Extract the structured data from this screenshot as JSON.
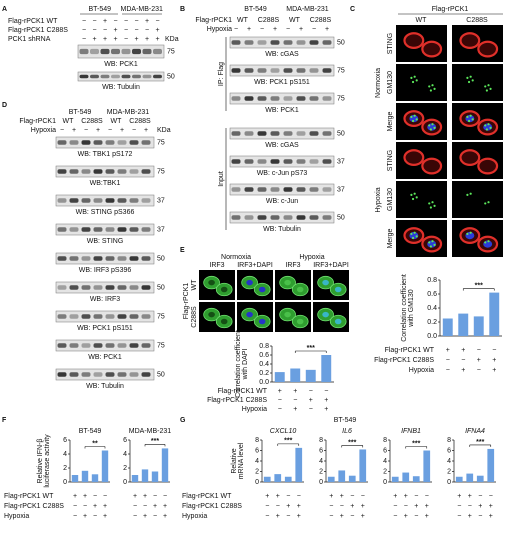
{
  "panels": {
    "A": {
      "label": "A",
      "groups": [
        "BT-549",
        "MDA-MB-231"
      ],
      "unit": "KDa",
      "rows": [
        {
          "name": "Flag-rPCK1 WT",
          "signs": [
            "−",
            "−",
            "+",
            "−",
            "−",
            "−",
            "+",
            "−"
          ]
        },
        {
          "name": "Flag-rPCK1 C288S",
          "signs": [
            "−",
            "−",
            "−",
            "+",
            "−",
            "−",
            "−",
            "+"
          ]
        },
        {
          "name": "PCK1 shRNA",
          "signs": [
            "−",
            "+",
            "+",
            "+",
            "−",
            "+",
            "+",
            "+"
          ]
        }
      ],
      "blots": [
        {
          "label": "WB: PCK1",
          "marker": 75
        },
        {
          "label": "WB: Tubulin",
          "marker": 50
        }
      ]
    },
    "B": {
      "label": "B",
      "groups": [
        "BT-549",
        "MDA-MB-231"
      ],
      "row_label": "Flag-rPCK1",
      "variants": [
        "WT",
        "C288S",
        "WT",
        "C288S"
      ],
      "hypoxia": {
        "name": "Hypoxia",
        "signs": [
          "−",
          "+",
          "−",
          "+",
          "−",
          "+",
          "−",
          "+"
        ]
      },
      "sections": [
        "IP: Flag",
        "Input"
      ],
      "blots": [
        {
          "label": "WB: cGAS",
          "marker": 50
        },
        {
          "label": "WB: PCK1 pS151",
          "marker": 75
        },
        {
          "label": "WB: PCK1",
          "marker": 75
        },
        {
          "label": "WB: cGAS",
          "marker": 50
        },
        {
          "label": "WB: c-Jun pS73",
          "marker": 37
        },
        {
          "label": "WB: c-Jun",
          "marker": 37
        },
        {
          "label": "WB: Tubulin",
          "marker": 50
        }
      ]
    },
    "C": {
      "label": "C",
      "header": "Flag-rPCK1",
      "variants": [
        "WT",
        "C288S"
      ],
      "conditions": [
        "Normoxia",
        "Hypoxia"
      ],
      "stains": [
        "STING",
        "GM130",
        "Merge"
      ],
      "condition_labels": [
        "Flag-rPCK1 WT",
        "Flag-rPCK1 C288S",
        "Hypoxia"
      ]
    },
    "D": {
      "label": "D",
      "groups": [
        "BT-549",
        "MDA-MB-231"
      ],
      "row_label": "Flag-rPCK1",
      "unit": "KDa",
      "variants": [
        "WT",
        "C288S",
        "WT",
        "C288S"
      ],
      "hypoxia": {
        "name": "Hypoxia",
        "signs": [
          "−",
          "+",
          "−",
          "+",
          "−",
          "+",
          "−",
          "+"
        ]
      },
      "blots": [
        {
          "label": "WB: TBK1 pS172",
          "marker": 75
        },
        {
          "label": "WB:TBK1",
          "marker": 75
        },
        {
          "label": "WB: STING pS366",
          "marker": 37
        },
        {
          "label": "WB: STING",
          "marker": 37
        },
        {
          "label": "WB: IRF3 pS396",
          "marker": 50
        },
        {
          "label": "WB: IRF3",
          "marker": 50
        },
        {
          "label": "WB: PCK1 pS151",
          "marker": 75
        },
        {
          "label": "WB: PCK1",
          "marker": 75
        },
        {
          "label": "WB: Tubulin",
          "marker": 50
        }
      ]
    },
    "E": {
      "label": "E",
      "conditions": [
        "Normoxia",
        "Hypoxia"
      ],
      "stains": [
        "IRF3",
        "IRF3+DAPI"
      ],
      "row_label": "Flag-rPCK1",
      "variants": [
        "WT",
        "C288S"
      ],
      "condition_labels": [
        "Flag-rPCK1 WT",
        "Flag-rPCK1 C288S",
        "Hypoxia"
      ]
    },
    "F": {
      "label": "F",
      "condition_labels": [
        "Flag-rPCK1 WT",
        "Flag-rPCK1 C288S",
        "Hypoxia"
      ]
    },
    "G": {
      "label": "G",
      "title": "BT-549",
      "condition_labels": [
        "Flag-rPCK1 WT",
        "Flag-rPCK1 C288S",
        "Hypoxia"
      ]
    }
  },
  "chart_data": [
    {
      "type": "bar",
      "ylabel": [
        "Correlation coefficient",
        "with GM130"
      ],
      "categories": [
        null,
        null,
        null,
        null
      ],
      "values": [
        0.25,
        0.32,
        0.28,
        0.62
      ],
      "color": "#6a9fe0",
      "ylim": [
        0,
        0.8
      ],
      "yticks": [
        {
          "value": 0,
          "label": "0.0"
        },
        0.2,
        0.4,
        0.6,
        0.8
      ],
      "annotation": "***",
      "signs": [
        [
          "+",
          "+",
          "−",
          "−"
        ],
        [
          "−",
          "−",
          "+",
          "+"
        ],
        [
          "−",
          "+",
          "−",
          "+"
        ]
      ]
    },
    {
      "type": "bar",
      "ylabel": [
        "Correlation coefficient",
        "with DAPI"
      ],
      "categories": [
        null,
        null,
        null,
        null
      ],
      "values": [
        0.22,
        0.3,
        0.27,
        0.6
      ],
      "color": "#6a9fe0",
      "ylim": [
        0,
        0.8
      ],
      "yticks": [
        {
          "value": 0,
          "label": "0.0"
        },
        0.2,
        0.4,
        0.6,
        0.8
      ],
      "annotation": "***",
      "signs": [
        [
          "+",
          "+",
          "−",
          "−"
        ],
        [
          "−",
          "−",
          "+",
          "+"
        ],
        [
          "−",
          "+",
          "−",
          "+"
        ]
      ]
    },
    {
      "type": "bar",
      "title": "BT-549",
      "ylabel": [
        "Relative IFN-β",
        "luciferase activity"
      ],
      "categories": [
        null,
        null,
        null,
        null
      ],
      "values": [
        1,
        1.6,
        1.1,
        4.5
      ],
      "color": "#6a9fe0",
      "ylim": [
        0,
        6
      ],
      "yticks": [
        0,
        2,
        4,
        6
      ],
      "annotation": "**",
      "signs": [
        [
          "+",
          "+",
          "−",
          "−"
        ],
        [
          "−",
          "−",
          "+",
          "+"
        ],
        [
          "−",
          "+",
          "−",
          "+"
        ]
      ]
    },
    {
      "type": "bar",
      "title": "MDA-MB-231",
      "categories": [
        null,
        null,
        null,
        null
      ],
      "values": [
        1,
        1.8,
        1.5,
        4.8
      ],
      "color": "#6a9fe0",
      "ylim": [
        0,
        6
      ],
      "yticks": [
        0,
        2,
        4,
        6
      ],
      "annotation": "***",
      "signs": [
        [
          "+",
          "+",
          "−",
          "−"
        ],
        [
          "−",
          "−",
          "+",
          "+"
        ],
        [
          "−",
          "+",
          "−",
          "+"
        ]
      ]
    },
    {
      "type": "bar",
      "title": "CXCL10",
      "ylabel": [
        "Relative",
        "mRNA level"
      ],
      "categories": [
        null,
        null,
        null,
        null
      ],
      "values": [
        1,
        1.5,
        1,
        6.5
      ],
      "color": "#6a9fe0",
      "ylim": [
        0,
        8
      ],
      "yticks": [
        0,
        2,
        4,
        6,
        8
      ],
      "annotation": "***",
      "signs": [
        [
          "+",
          "+",
          "−",
          "−"
        ],
        [
          "−",
          "−",
          "+",
          "+"
        ],
        [
          "−",
          "+",
          "−",
          "+"
        ]
      ]
    },
    {
      "type": "bar",
      "title": "IL6",
      "categories": [
        null,
        null,
        null,
        null
      ],
      "values": [
        1,
        2.2,
        1.2,
        6.2
      ],
      "color": "#6a9fe0",
      "ylim": [
        0,
        8
      ],
      "yticks": [
        0,
        2,
        4,
        6,
        8
      ],
      "annotation": "***",
      "signs": [
        [
          "+",
          "+",
          "−",
          "−"
        ],
        [
          "−",
          "−",
          "+",
          "+"
        ],
        [
          "−",
          "+",
          "−",
          "+"
        ]
      ]
    },
    {
      "type": "bar",
      "title": "IFNB1",
      "categories": [
        null,
        null,
        null,
        null
      ],
      "values": [
        1,
        1.8,
        1.1,
        6
      ],
      "color": "#6a9fe0",
      "ylim": [
        0,
        8
      ],
      "yticks": [
        0,
        2,
        4,
        6,
        8
      ],
      "annotation": "***",
      "signs": [
        [
          "+",
          "+",
          "−",
          "−"
        ],
        [
          "−",
          "−",
          "+",
          "+"
        ],
        [
          "−",
          "+",
          "−",
          "+"
        ]
      ]
    },
    {
      "type": "bar",
      "title": "IFNA4",
      "categories": [
        null,
        null,
        null,
        null
      ],
      "values": [
        1,
        1.6,
        1.2,
        6.3
      ],
      "color": "#6a9fe0",
      "ylim": [
        0,
        8
      ],
      "yticks": [
        0,
        2,
        4,
        6,
        8
      ],
      "annotation": "***",
      "signs": [
        [
          "+",
          "+",
          "−",
          "−"
        ],
        [
          "−",
          "−",
          "+",
          "+"
        ],
        [
          "−",
          "+",
          "−",
          "+"
        ]
      ]
    }
  ]
}
